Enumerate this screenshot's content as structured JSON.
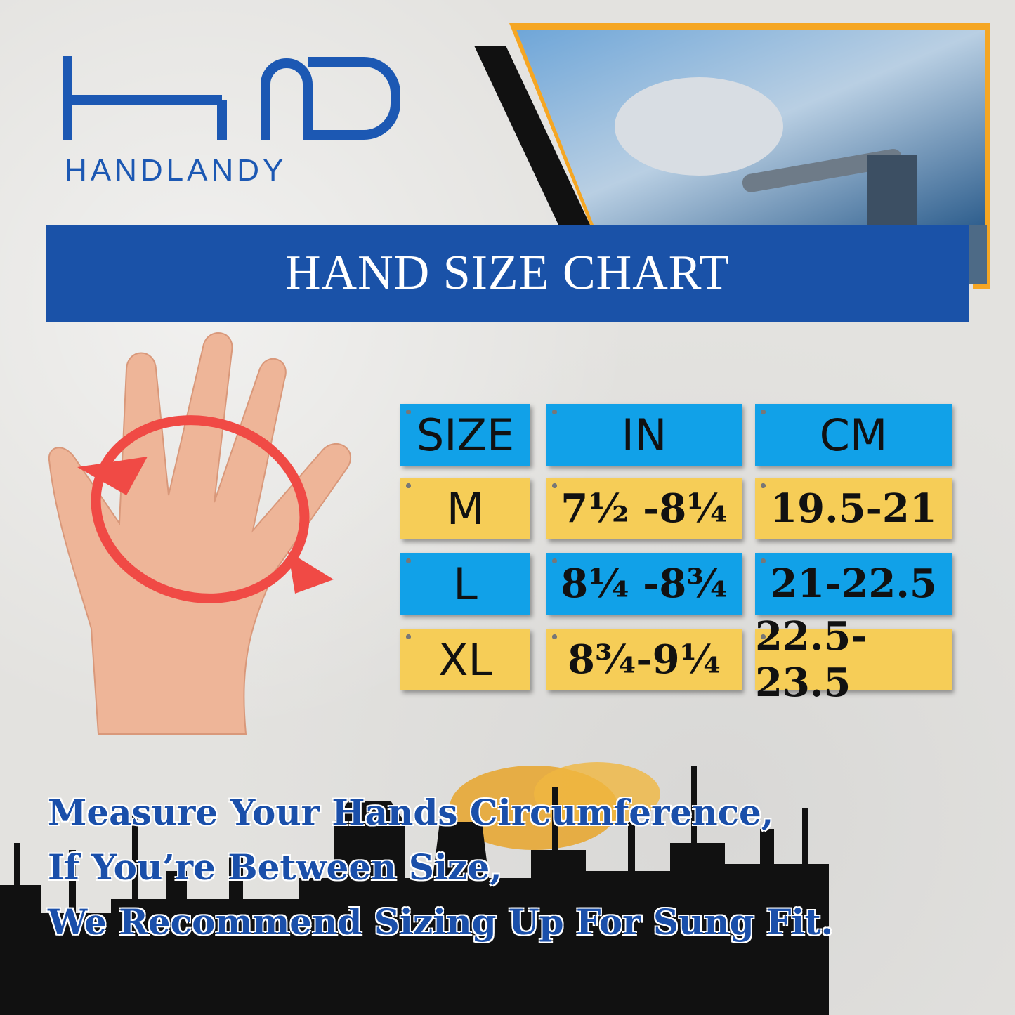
{
  "brand": {
    "name": "HANDLANDY",
    "logo_mark": "HLD"
  },
  "banner": {
    "title": "HAND SIZE CHART"
  },
  "table": {
    "headers": [
      "SIZE",
      "IN",
      "CM"
    ],
    "rows": [
      {
        "size": "M",
        "in": "7½ -8¼",
        "cm": "19.5-21",
        "color": "#f6cd57"
      },
      {
        "size": "L",
        "in": "8¼ -8¾",
        "cm": "21-22.5",
        "color": "#11a1e8"
      },
      {
        "size": "XL",
        "in": "8¾-9¼",
        "cm": "22.5-23.5",
        "color": "#f6cd57"
      }
    ]
  },
  "message": {
    "lines": [
      "Measure Your  Hands Circumference,",
      "If You’re Between Size,",
      "We Recommend Sizing Up For Sung Fit."
    ]
  },
  "colors": {
    "brand_blue": "#1a52a8",
    "cell_blue": "#11a1e8",
    "cell_yellow": "#f6cd57",
    "frame_orange": "#f5a623"
  }
}
